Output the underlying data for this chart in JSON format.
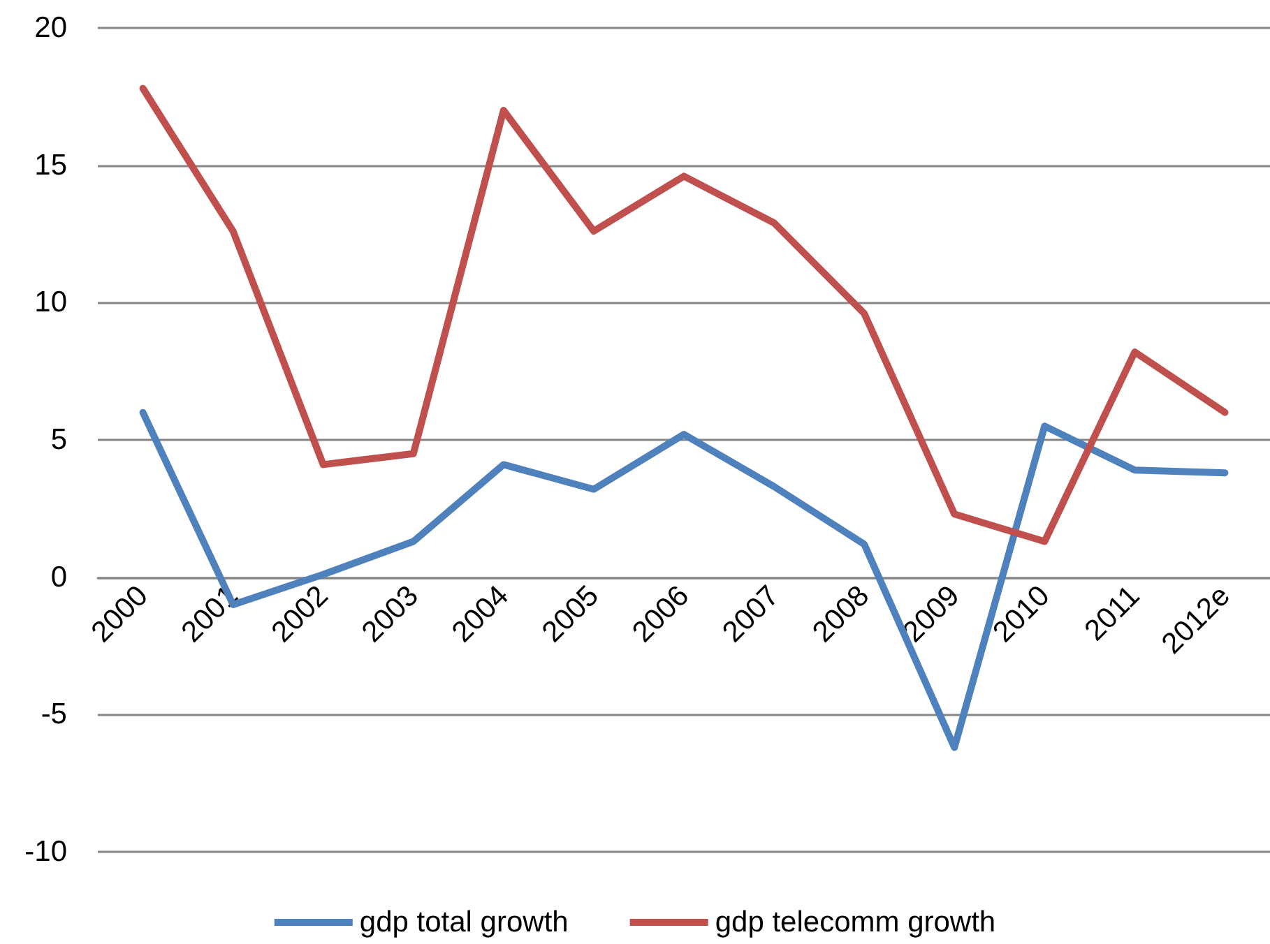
{
  "chart_data": {
    "type": "line",
    "categories": [
      "2000",
      "2001",
      "2002",
      "2003",
      "2004",
      "2005",
      "2006",
      "2007",
      "2008",
      "2009",
      "2010",
      "2011",
      "2012e"
    ],
    "series": [
      {
        "name": "gdp total growth",
        "color": "#4f81bd",
        "values": [
          6.0,
          -1.0,
          0.1,
          1.3,
          4.1,
          3.2,
          5.2,
          3.3,
          1.2,
          -6.2,
          5.5,
          3.9,
          3.8
        ]
      },
      {
        "name": "gdp telecomm growth",
        "color": "#c0504d",
        "values": [
          17.8,
          12.6,
          4.1,
          4.5,
          17.0,
          12.6,
          14.6,
          12.9,
          9.6,
          2.3,
          1.3,
          8.2,
          6.0
        ]
      }
    ],
    "ylim": [
      -10,
      20
    ],
    "yticks": [
      -10,
      -5,
      0,
      5,
      10,
      15,
      20
    ],
    "grid": "y",
    "legend": "bottom",
    "marker": "none",
    "line_style": "solid"
  }
}
